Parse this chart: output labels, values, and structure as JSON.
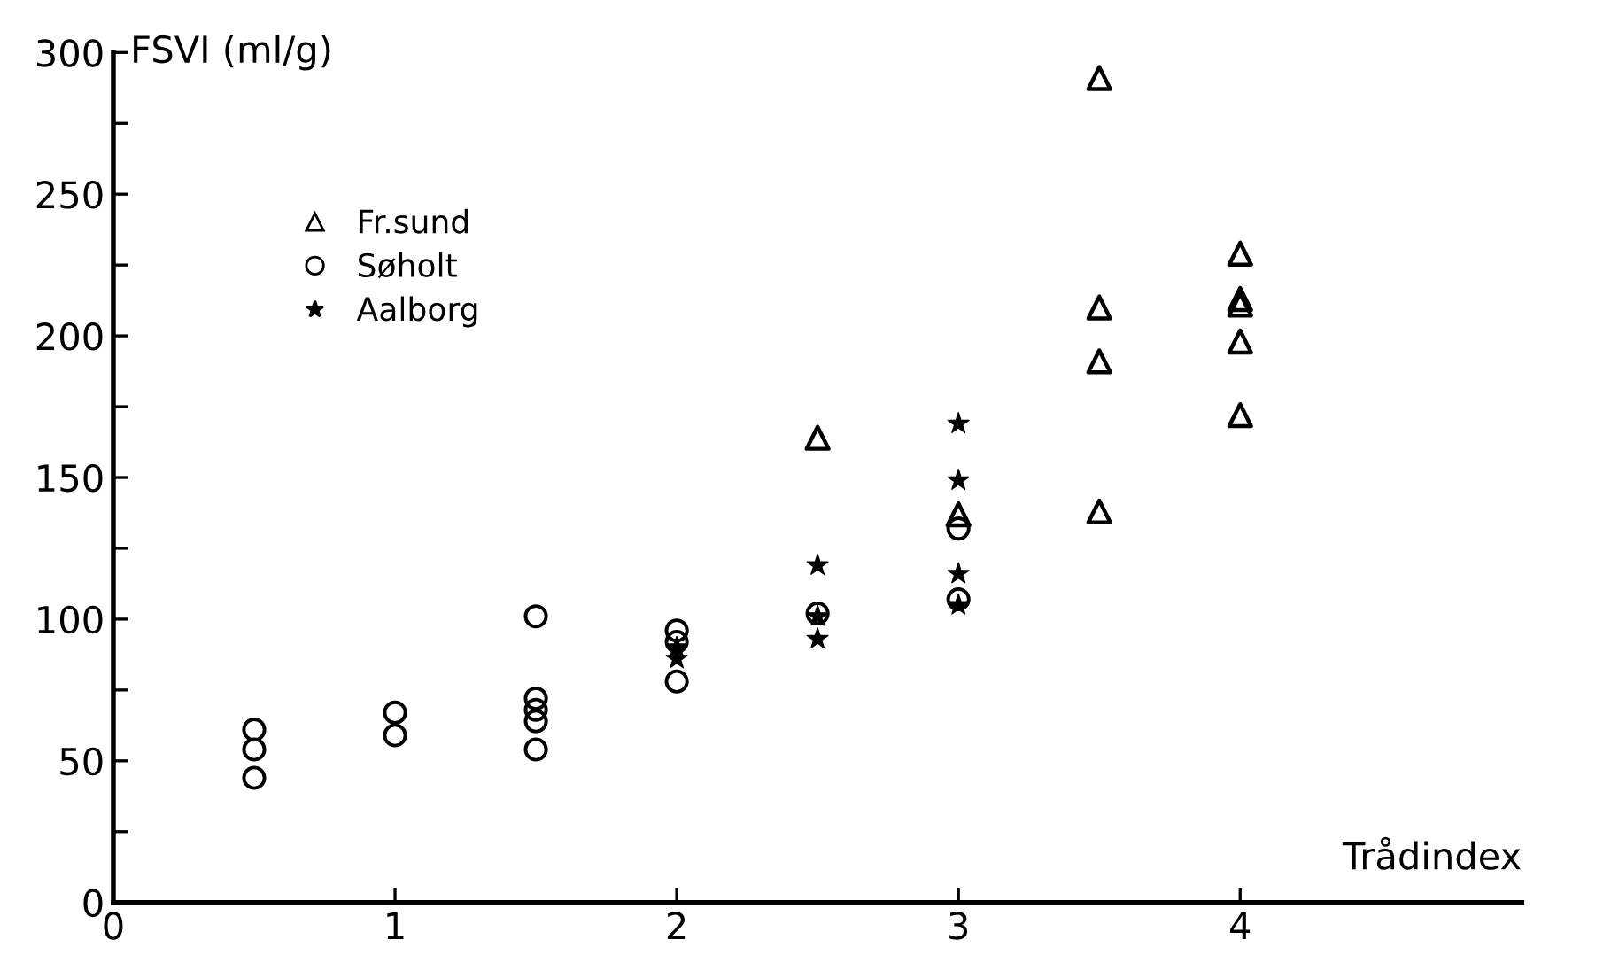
{
  "chart_data": {
    "type": "scatter",
    "ylabel": "FSVI (ml/g)",
    "xlabel": "Trådindex",
    "xlim": [
      0,
      5
    ],
    "ylim": [
      0,
      300
    ],
    "xticks": [
      0,
      1,
      2,
      3,
      4
    ],
    "yticks": [
      0,
      {
        "value": 25,
        "label": null
      },
      50,
      {
        "value": 75,
        "label": null
      },
      100,
      {
        "value": 125,
        "label": null
      },
      150,
      {
        "value": 175,
        "label": null
      },
      200,
      {
        "value": 225,
        "label": null
      },
      250,
      {
        "value": 275,
        "label": null
      },
      300
    ],
    "grid": false,
    "legend": "top left",
    "series": [
      {
        "name": "Fr.sund",
        "color": "#000000",
        "marker": "triangle",
        "x": [
          2.5,
          3,
          3.5,
          3.5,
          3.5,
          3.5,
          4,
          4,
          4,
          4,
          4
        ],
        "values": [
          164,
          137,
          291,
          210,
          191,
          138,
          229,
          213,
          211,
          198,
          172
        ]
      },
      {
        "name": "Søholt",
        "color": "#000000",
        "marker": "circle",
        "x": [
          0.5,
          0.5,
          0.5,
          1,
          1,
          1.5,
          1.5,
          1.5,
          1.5,
          1.5,
          2,
          2,
          2,
          2.5,
          3,
          3
        ],
        "values": [
          61,
          54,
          44,
          67,
          59,
          101,
          72,
          68,
          64,
          54,
          96,
          92,
          78,
          102,
          132,
          107
        ]
      },
      {
        "name": "Aalborg",
        "color": "#000000",
        "marker": "star",
        "x": [
          2,
          2,
          2.5,
          2.5,
          2.5,
          3,
          3,
          3,
          3
        ],
        "values": [
          90,
          86,
          119,
          101,
          93,
          169,
          149,
          116,
          105
        ]
      }
    ]
  }
}
